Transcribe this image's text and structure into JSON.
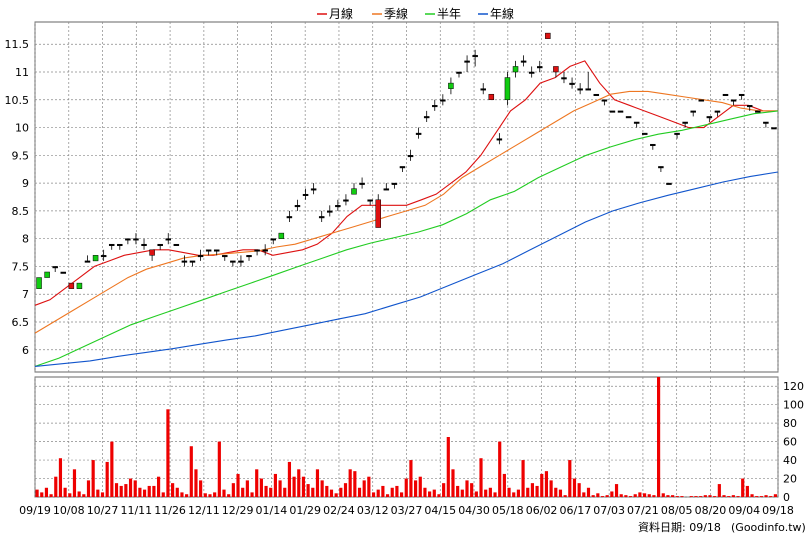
{
  "legend": [
    {
      "name": "月線",
      "color": "#dd1111"
    },
    {
      "name": "季線",
      "color": "#ee7722"
    },
    {
      "name": "半年",
      "color": "#22cc22"
    },
    {
      "name": "年線",
      "color": "#1155cc"
    }
  ],
  "footer": {
    "date_label": "資料日期: 09/18",
    "source": "(Goodinfo.tw)"
  },
  "colors": {
    "up": "#11cc11",
    "down": "#dd1111",
    "volume": "#ee0000",
    "grid": "#888888"
  },
  "chart_data": [
    {
      "type": "candlestick",
      "ylim": [
        5.6,
        11.9
      ],
      "yticks": [
        6,
        6.5,
        7,
        7.5,
        8,
        8.5,
        9,
        9.5,
        10,
        10.5,
        11,
        11.5
      ],
      "xticks": [
        "09/19",
        "10/08",
        "10/27",
        "11/11",
        "11/26",
        "12/11",
        "12/29",
        "01/14",
        "01/29",
        "02/24",
        "03/12",
        "03/27",
        "04/15",
        "04/30",
        "05/18",
        "06/02",
        "06/17",
        "07/03",
        "07/21",
        "08/05",
        "08/20",
        "09/04",
        "09/18"
      ],
      "candles": [
        [
          7.1,
          7.3,
          7.1,
          7.3
        ],
        [
          7.3,
          7.4,
          7.3,
          7.4
        ],
        [
          7.5,
          7.5,
          7.4,
          7.5
        ],
        [
          7.4,
          7.4,
          7.4,
          7.4
        ],
        [
          7.2,
          7.2,
          7.1,
          7.1
        ],
        [
          7.1,
          7.2,
          7.1,
          7.2
        ],
        [
          7.6,
          7.7,
          7.6,
          7.6
        ],
        [
          7.6,
          7.7,
          7.6,
          7.7
        ],
        [
          7.7,
          7.8,
          7.6,
          7.7
        ],
        [
          7.9,
          7.9,
          7.8,
          7.9
        ],
        [
          7.9,
          7.9,
          7.8,
          7.9
        ],
        [
          8.0,
          8.0,
          7.9,
          8.0
        ],
        [
          8.0,
          8.1,
          7.9,
          8.0
        ],
        [
          7.9,
          8.0,
          7.8,
          7.9
        ],
        [
          7.8,
          7.8,
          7.6,
          7.7
        ],
        [
          7.9,
          7.9,
          7.8,
          7.9
        ],
        [
          8.0,
          8.1,
          7.9,
          8.0
        ],
        [
          7.9,
          7.9,
          7.9,
          7.9
        ],
        [
          7.6,
          7.7,
          7.5,
          7.6
        ],
        [
          7.6,
          7.6,
          7.5,
          7.6
        ],
        [
          7.7,
          7.8,
          7.6,
          7.7
        ],
        [
          7.8,
          7.8,
          7.7,
          7.8
        ],
        [
          7.8,
          7.8,
          7.7,
          7.8
        ],
        [
          7.7,
          7.7,
          7.6,
          7.7
        ],
        [
          7.6,
          7.6,
          7.5,
          7.6
        ],
        [
          7.6,
          7.7,
          7.5,
          7.6
        ],
        [
          7.7,
          7.7,
          7.6,
          7.7
        ],
        [
          7.8,
          7.8,
          7.7,
          7.8
        ],
        [
          7.8,
          7.9,
          7.7,
          7.8
        ],
        [
          8.0,
          8.0,
          7.9,
          8.0
        ],
        [
          8.0,
          8.1,
          8.0,
          8.1
        ],
        [
          8.4,
          8.5,
          8.3,
          8.4
        ],
        [
          8.6,
          8.7,
          8.5,
          8.6
        ],
        [
          8.8,
          8.9,
          8.7,
          8.8
        ],
        [
          8.9,
          9.0,
          8.8,
          8.9
        ],
        [
          8.4,
          8.5,
          8.3,
          8.4
        ],
        [
          8.5,
          8.6,
          8.4,
          8.5
        ],
        [
          8.6,
          8.7,
          8.5,
          8.6
        ],
        [
          8.7,
          8.8,
          8.6,
          8.7
        ],
        [
          8.8,
          9.0,
          8.8,
          8.9
        ],
        [
          9.0,
          9.1,
          8.9,
          9.0
        ],
        [
          8.7,
          8.7,
          8.6,
          8.7
        ],
        [
          8.7,
          8.8,
          8.2,
          8.2
        ],
        [
          8.9,
          9.0,
          8.9,
          8.9
        ],
        [
          9.0,
          9.0,
          8.9,
          9.0
        ],
        [
          9.3,
          9.3,
          9.2,
          9.3
        ],
        [
          9.5,
          9.6,
          9.4,
          9.5
        ],
        [
          9.9,
          10.0,
          9.8,
          9.9
        ],
        [
          10.2,
          10.3,
          10.1,
          10.2
        ],
        [
          10.4,
          10.5,
          10.3,
          10.4
        ],
        [
          10.5,
          10.6,
          10.4,
          10.5
        ],
        [
          10.7,
          10.9,
          10.6,
          10.8
        ],
        [
          11.0,
          11.0,
          10.9,
          11.0
        ],
        [
          11.2,
          11.3,
          11.0,
          11.2
        ],
        [
          11.3,
          11.4,
          11.1,
          11.3
        ],
        [
          10.7,
          10.8,
          10.6,
          10.7
        ],
        [
          10.6,
          10.6,
          10.5,
          10.5
        ],
        [
          9.8,
          9.9,
          9.7,
          9.8
        ],
        [
          10.5,
          11.0,
          10.4,
          10.9
        ],
        [
          11.0,
          11.2,
          10.9,
          11.1
        ],
        [
          11.2,
          11.3,
          11.1,
          11.2
        ],
        [
          11.0,
          11.1,
          10.9,
          11.0
        ],
        [
          11.1,
          11.2,
          11.0,
          11.1
        ],
        [
          11.7,
          11.7,
          11.6,
          11.6
        ],
        [
          11.1,
          11.1,
          10.9,
          11.0
        ],
        [
          10.9,
          11.0,
          10.8,
          10.9
        ],
        [
          10.8,
          10.9,
          10.7,
          10.8
        ],
        [
          10.7,
          10.8,
          10.6,
          10.7
        ],
        [
          10.7,
          11.0,
          10.7,
          10.7
        ],
        [
          10.6,
          10.6,
          10.6,
          10.6
        ],
        [
          10.5,
          10.5,
          10.4,
          10.5
        ],
        [
          10.3,
          10.3,
          10.3,
          10.3
        ],
        [
          10.3,
          10.3,
          10.3,
          10.3
        ],
        [
          10.2,
          10.2,
          10.2,
          10.2
        ],
        [
          10.1,
          10.1,
          10.0,
          10.1
        ],
        [
          9.9,
          9.9,
          9.9,
          9.9
        ],
        [
          9.7,
          9.7,
          9.6,
          9.7
        ],
        [
          9.3,
          9.3,
          9.2,
          9.3
        ],
        [
          9.0,
          9.0,
          9.0,
          9.0
        ],
        [
          9.9,
          9.9,
          9.8,
          9.9
        ],
        [
          10.1,
          10.1,
          10.0,
          10.1
        ],
        [
          10.3,
          10.3,
          10.2,
          10.3
        ],
        [
          10.5,
          10.5,
          10.5,
          10.5
        ],
        [
          10.2,
          10.2,
          10.1,
          10.2
        ],
        [
          10.3,
          10.3,
          10.2,
          10.3
        ],
        [
          10.6,
          10.6,
          10.6,
          10.6
        ],
        [
          10.5,
          10.5,
          10.4,
          10.5
        ],
        [
          10.6,
          10.6,
          10.5,
          10.6
        ],
        [
          10.4,
          10.4,
          10.3,
          10.4
        ],
        [
          10.3,
          10.3,
          10.3,
          10.3
        ],
        [
          10.1,
          10.1,
          10.0,
          10.1
        ],
        [
          10.0,
          10.0,
          10.0,
          10.0
        ]
      ],
      "series": [
        {
          "name": "月線",
          "values": [
            6.8,
            6.9,
            7.1,
            7.3,
            7.5,
            7.6,
            7.7,
            7.75,
            7.8,
            7.8,
            7.75,
            7.7,
            7.7,
            7.75,
            7.8,
            7.8,
            7.7,
            7.75,
            7.8,
            7.9,
            8.1,
            8.4,
            8.6,
            8.6,
            8.6,
            8.6,
            8.7,
            8.8,
            9.0,
            9.2,
            9.5,
            9.9,
            10.3,
            10.5,
            10.8,
            10.9,
            11.1,
            11.2,
            10.8,
            10.5,
            10.4,
            10.3,
            10.2,
            10.1,
            10.0,
            10.0,
            10.2,
            10.4,
            10.4,
            10.3,
            10.3
          ]
        },
        {
          "name": "季線",
          "values": [
            6.3,
            6.5,
            6.7,
            6.9,
            7.1,
            7.3,
            7.45,
            7.55,
            7.65,
            7.7,
            7.72,
            7.75,
            7.78,
            7.85,
            7.9,
            8.0,
            8.1,
            8.2,
            8.3,
            8.4,
            8.5,
            8.6,
            8.8,
            9.1,
            9.3,
            9.5,
            9.7,
            9.9,
            10.1,
            10.3,
            10.45,
            10.6,
            10.65,
            10.65,
            10.6,
            10.55,
            10.5,
            10.45,
            10.35,
            10.3,
            10.3
          ]
        },
        {
          "name": "半年",
          "values": [
            5.7,
            5.85,
            6.05,
            6.25,
            6.45,
            6.6,
            6.75,
            6.9,
            7.05,
            7.2,
            7.35,
            7.5,
            7.65,
            7.8,
            7.92,
            8.02,
            8.12,
            8.25,
            8.45,
            8.7,
            8.85,
            9.1,
            9.3,
            9.5,
            9.65,
            9.78,
            9.88,
            9.95,
            10.05,
            10.15,
            10.25,
            10.3
          ]
        },
        {
          "name": "年線",
          "values": [
            5.7,
            5.75,
            5.8,
            5.88,
            5.95,
            6.02,
            6.1,
            6.18,
            6.25,
            6.35,
            6.45,
            6.55,
            6.65,
            6.8,
            6.95,
            7.15,
            7.35,
            7.55,
            7.8,
            8.05,
            8.3,
            8.5,
            8.65,
            8.78,
            8.9,
            9.02,
            9.12,
            9.2
          ]
        }
      ]
    },
    {
      "type": "bar",
      "name": "volume",
      "ylim": [
        0,
        130
      ],
      "yticks": [
        0,
        20,
        40,
        60,
        80,
        100,
        120
      ],
      "values": [
        8,
        5,
        10,
        3,
        22,
        42,
        10,
        4,
        30,
        6,
        3,
        18,
        40,
        8,
        5,
        38,
        60,
        15,
        12,
        14,
        20,
        18,
        10,
        8,
        12,
        12,
        22,
        5,
        95,
        15,
        10,
        5,
        3,
        55,
        30,
        18,
        4,
        3,
        5,
        60,
        8,
        3,
        15,
        25,
        10,
        18,
        5,
        30,
        20,
        12,
        10,
        25,
        18,
        10,
        38,
        22,
        30,
        22,
        14,
        10,
        30,
        18,
        12,
        8,
        4,
        10,
        15,
        30,
        28,
        10,
        18,
        22,
        5,
        8,
        12,
        3,
        10,
        12,
        5,
        20,
        40,
        18,
        22,
        10,
        6,
        8,
        3,
        15,
        65,
        30,
        12,
        8,
        18,
        15,
        6,
        42,
        8,
        10,
        5,
        60,
        25,
        10,
        5,
        8,
        40,
        10,
        15,
        12,
        25,
        28,
        18,
        10,
        8,
        2,
        40,
        20,
        15,
        5,
        10,
        2,
        4,
        1,
        2,
        6,
        14,
        3,
        2,
        1,
        3,
        5,
        4,
        3,
        2,
        130,
        4,
        2,
        2,
        1,
        1,
        0,
        1,
        1,
        1,
        2,
        2,
        1,
        14,
        2,
        1,
        2,
        1,
        20,
        12,
        3,
        1,
        1,
        2,
        1,
        3
      ]
    }
  ]
}
